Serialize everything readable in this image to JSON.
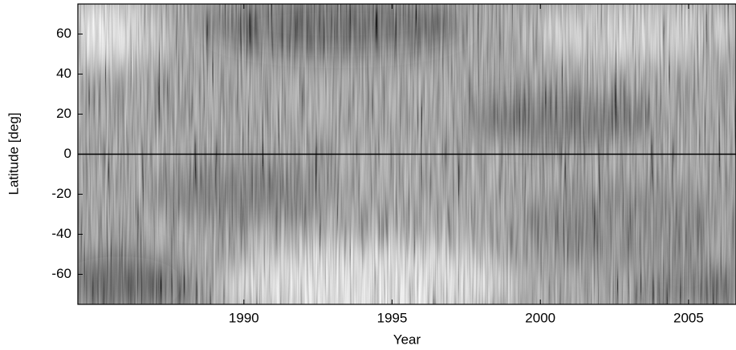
{
  "chart_data": {
    "type": "heatmap",
    "xlabel": "Year",
    "ylabel": "Latitude [deg]",
    "xlim": [
      1984.4,
      2006.6
    ],
    "xticks": [
      1990,
      1995,
      2000,
      2005
    ],
    "ylim": [
      -75,
      75
    ],
    "yticks": [
      -60,
      -40,
      -20,
      0,
      20,
      40,
      60
    ],
    "reference_line": 0,
    "colormap": "gray"
  }
}
